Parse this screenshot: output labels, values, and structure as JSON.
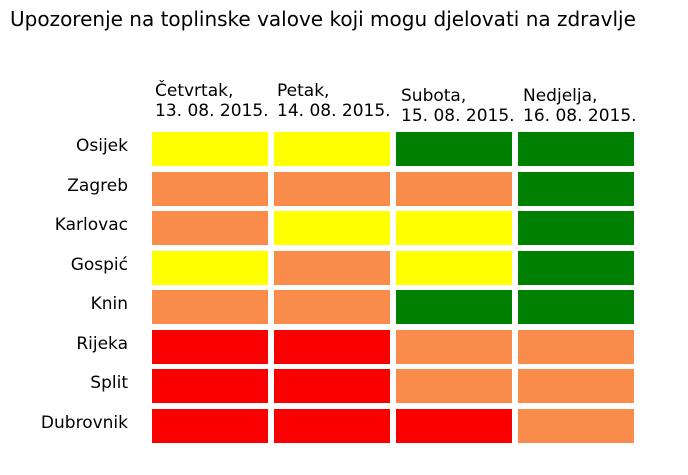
{
  "title": "Upozorenje na toplinske valove koji mogu djelovati na zdravlje",
  "chart_data": {
    "type": "heatmap",
    "title": "Upozorenje na toplinske valove koji mogu djelovati na zdravlje",
    "columns": [
      {
        "day": "Četvrtak,",
        "date": "13. 08. 2015."
      },
      {
        "day": "Petak,",
        "date": "14. 08. 2015."
      },
      {
        "day": "Subota,",
        "date": "15. 08. 2015."
      },
      {
        "day": "Nedjelja,",
        "date": "16. 08. 2015."
      }
    ],
    "rows": [
      "Osijek",
      "Zagreb",
      "Karlovac",
      "Gospić",
      "Knin",
      "Rijeka",
      "Split",
      "Dubrovnik"
    ],
    "values": [
      [
        "yellow",
        "yellow",
        "green",
        "green"
      ],
      [
        "orange",
        "orange",
        "orange",
        "green"
      ],
      [
        "orange",
        "yellow",
        "yellow",
        "green"
      ],
      [
        "yellow",
        "orange",
        "yellow",
        "green"
      ],
      [
        "orange",
        "orange",
        "green",
        "green"
      ],
      [
        "red",
        "red",
        "orange",
        "orange"
      ],
      [
        "red",
        "red",
        "orange",
        "orange"
      ],
      [
        "red",
        "red",
        "red",
        "orange"
      ]
    ],
    "level_colors": {
      "green": "#008000",
      "yellow": "#FFFF00",
      "orange": "#FA8C4B",
      "red": "#FA0000"
    },
    "legend": "none",
    "grid": "off",
    "background": "#ffffff"
  }
}
